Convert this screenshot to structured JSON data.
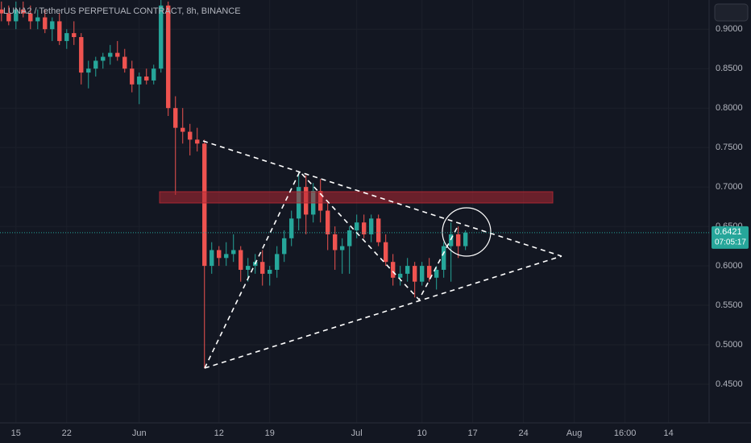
{
  "chart_data": {
    "type": "candlestick",
    "title": "LUNA2 / TetherUS PERPETUAL CONTRACT, 8h, BINANCE",
    "up_color": "#26a69a",
    "down_color": "#ef5350",
    "x": [
      -2,
      -1,
      0,
      1,
      2,
      3,
      4,
      5,
      6,
      7,
      8,
      9,
      10,
      11,
      12,
      13,
      14,
      15,
      16,
      17,
      18,
      19,
      20,
      21,
      22,
      23,
      24,
      25,
      26,
      27,
      28,
      29,
      30,
      31,
      32,
      33,
      34,
      35,
      36,
      37,
      38,
      39,
      40,
      41,
      42,
      43,
      44,
      45,
      46,
      47,
      48,
      49,
      50,
      51,
      52,
      53,
      54,
      55,
      56,
      57,
      58,
      59,
      60,
      61,
      62
    ],
    "ohlc": [
      [
        0.925,
        0.935,
        0.91,
        0.92
      ],
      [
        0.92,
        0.93,
        0.905,
        0.91
      ],
      [
        0.91,
        0.935,
        0.9,
        0.925
      ],
      [
        0.925,
        0.935,
        0.915,
        0.92
      ],
      [
        0.92,
        0.93,
        0.9,
        0.91
      ],
      [
        0.91,
        0.925,
        0.9,
        0.915
      ],
      [
        0.915,
        0.925,
        0.895,
        0.9
      ],
      [
        0.9,
        0.915,
        0.885,
        0.91
      ],
      [
        0.91,
        0.92,
        0.88,
        0.885
      ],
      [
        0.885,
        0.9,
        0.875,
        0.895
      ],
      [
        0.895,
        0.91,
        0.88,
        0.89
      ],
      [
        0.89,
        0.895,
        0.83,
        0.845
      ],
      [
        0.845,
        0.86,
        0.825,
        0.85
      ],
      [
        0.85,
        0.865,
        0.84,
        0.86
      ],
      [
        0.86,
        0.87,
        0.85,
        0.865
      ],
      [
        0.865,
        0.88,
        0.855,
        0.87
      ],
      [
        0.87,
        0.885,
        0.86,
        0.865
      ],
      [
        0.865,
        0.875,
        0.845,
        0.85
      ],
      [
        0.85,
        0.86,
        0.82,
        0.83
      ],
      [
        0.83,
        0.845,
        0.805,
        0.84
      ],
      [
        0.84,
        0.85,
        0.83,
        0.835
      ],
      [
        0.835,
        0.855,
        0.83,
        0.85
      ],
      [
        0.85,
        0.94,
        0.845,
        0.93
      ],
      [
        0.93,
        0.935,
        0.79,
        0.8
      ],
      [
        0.8,
        0.815,
        0.69,
        0.775
      ],
      [
        0.775,
        0.8,
        0.755,
        0.77
      ],
      [
        0.77,
        0.78,
        0.74,
        0.76
      ],
      [
        0.76,
        0.775,
        0.745,
        0.755
      ],
      [
        0.755,
        0.76,
        0.47,
        0.6
      ],
      [
        0.6,
        0.63,
        0.59,
        0.62
      ],
      [
        0.62,
        0.625,
        0.6,
        0.61
      ],
      [
        0.61,
        0.63,
        0.6,
        0.615
      ],
      [
        0.615,
        0.64,
        0.605,
        0.62
      ],
      [
        0.62,
        0.625,
        0.58,
        0.595
      ],
      [
        0.595,
        0.61,
        0.58,
        0.6
      ],
      [
        0.6,
        0.615,
        0.59,
        0.605
      ],
      [
        0.605,
        0.62,
        0.575,
        0.59
      ],
      [
        0.59,
        0.6,
        0.575,
        0.595
      ],
      [
        0.595,
        0.625,
        0.585,
        0.615
      ],
      [
        0.615,
        0.645,
        0.605,
        0.635
      ],
      [
        0.635,
        0.67,
        0.625,
        0.66
      ],
      [
        0.66,
        0.72,
        0.645,
        0.7
      ],
      [
        0.7,
        0.715,
        0.64,
        0.665
      ],
      [
        0.665,
        0.705,
        0.655,
        0.695
      ],
      [
        0.695,
        0.71,
        0.655,
        0.67
      ],
      [
        0.67,
        0.68,
        0.62,
        0.64
      ],
      [
        0.64,
        0.65,
        0.595,
        0.62
      ],
      [
        0.62,
        0.635,
        0.59,
        0.625
      ],
      [
        0.625,
        0.65,
        0.59,
        0.645
      ],
      [
        0.645,
        0.665,
        0.635,
        0.655
      ],
      [
        0.655,
        0.665,
        0.635,
        0.64
      ],
      [
        0.64,
        0.665,
        0.63,
        0.66
      ],
      [
        0.66,
        0.665,
        0.625,
        0.63
      ],
      [
        0.63,
        0.64,
        0.6,
        0.605
      ],
      [
        0.605,
        0.615,
        0.575,
        0.585
      ],
      [
        0.585,
        0.6,
        0.575,
        0.59
      ],
      [
        0.59,
        0.61,
        0.58,
        0.6
      ],
      [
        0.6,
        0.605,
        0.56,
        0.58
      ],
      [
        0.58,
        0.605,
        0.575,
        0.6
      ],
      [
        0.6,
        0.61,
        0.58,
        0.585
      ],
      [
        0.585,
        0.6,
        0.57,
        0.595
      ],
      [
        0.595,
        0.63,
        0.585,
        0.625
      ],
      [
        0.625,
        0.655,
        0.58,
        0.64
      ],
      [
        0.64,
        0.65,
        0.61,
        0.625
      ],
      [
        0.625,
        0.645,
        0.62,
        0.6421
      ]
    ],
    "countdown": "07:05:17",
    "xlim": [
      -2.2,
      95.6
    ],
    "ylim": [
      0.401,
      0.937
    ],
    "xticks": [
      {
        "value": 0,
        "label": "15"
      },
      {
        "value": 7,
        "label": "22"
      },
      {
        "value": 17,
        "label": "Jun"
      },
      {
        "value": 28,
        "label": "12"
      },
      {
        "value": 35,
        "label": "19"
      },
      {
        "value": 47,
        "label": "Jul"
      },
      {
        "value": 56,
        "label": "10"
      },
      {
        "value": 63,
        "label": "17"
      },
      {
        "value": 70,
        "label": "24"
      },
      {
        "value": 77,
        "label": "Aug"
      },
      {
        "value": 84,
        "label": "16:00"
      },
      {
        "value": 90,
        "label": "14"
      }
    ],
    "yticks": [
      {
        "value": 0.45,
        "label": "0.4500"
      },
      {
        "value": 0.5,
        "label": "0.5000"
      },
      {
        "value": 0.55,
        "label": "0.5500"
      },
      {
        "value": 0.6,
        "label": "0.6000"
      },
      {
        "value": 0.65,
        "label": "0.6500"
      },
      {
        "value": 0.7,
        "label": "0.7000"
      },
      {
        "value": 0.75,
        "label": "0.7500"
      },
      {
        "value": 0.8,
        "label": "0.8000"
      },
      {
        "value": 0.85,
        "label": "0.8500"
      },
      {
        "value": 0.9,
        "label": "0.9000"
      }
    ],
    "grid": true
  }
}
